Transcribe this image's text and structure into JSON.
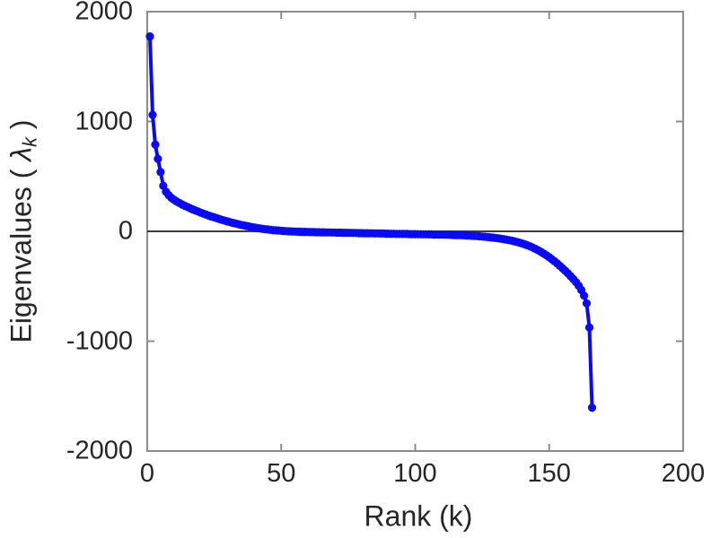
{
  "chart_data": {
    "type": "line",
    "title": "",
    "xlabel": "Rank (k)",
    "ylabel": "Eigenvalues ( λ_k )",
    "ylabel_parts": {
      "text": "Eigenvalues ( ",
      "symbol": "λ",
      "subscript": "k",
      "close": " )"
    },
    "xlim": [
      0,
      200
    ],
    "ylim": [
      -2000,
      2000
    ],
    "xticks": [
      0,
      50,
      100,
      150,
      200
    ],
    "yticks": [
      2000,
      1000,
      0,
      -1000,
      -2000
    ],
    "xtick_labels": [
      "0",
      "50",
      "100",
      "150",
      "200"
    ],
    "ytick_labels": [
      "2000",
      "1000",
      "0",
      "-1000",
      "-2000"
    ],
    "grid": false,
    "box": true,
    "tick_direction": "in",
    "zero_line": true,
    "legend": "none",
    "line_color": "#0a0af5",
    "axis_color": "#8c8c8c",
    "zero_line_color": "#3c3c3c",
    "text_color": "#262626",
    "marker": "filled-circle",
    "marker_radius": 4.6,
    "line_width": 4,
    "series": [
      {
        "name": "eigenvalues",
        "x": [
          1,
          2,
          3,
          4,
          5,
          6,
          7,
          8,
          9,
          10,
          11,
          12,
          13,
          14,
          15,
          16,
          17,
          18,
          19,
          20,
          21,
          22,
          23,
          24,
          25,
          26,
          27,
          28,
          29,
          30,
          31,
          32,
          33,
          34,
          35,
          36,
          37,
          38,
          39,
          40,
          41,
          42,
          43,
          44,
          45,
          46,
          47,
          48,
          49,
          50,
          51,
          52,
          53,
          54,
          55,
          56,
          57,
          58,
          59,
          60,
          61,
          62,
          63,
          64,
          65,
          66,
          67,
          68,
          69,
          70,
          71,
          72,
          73,
          74,
          75,
          76,
          77,
          78,
          79,
          80,
          81,
          82,
          83,
          84,
          85,
          86,
          87,
          88,
          89,
          90,
          91,
          92,
          93,
          94,
          95,
          96,
          97,
          98,
          99,
          100,
          101,
          102,
          103,
          104,
          105,
          106,
          107,
          108,
          109,
          110,
          111,
          112,
          113,
          114,
          115,
          116,
          117,
          118,
          119,
          120,
          121,
          122,
          123,
          124,
          125,
          126,
          127,
          128,
          129,
          130,
          131,
          132,
          133,
          134,
          135,
          136,
          137,
          138,
          139,
          140,
          141,
          142,
          143,
          144,
          145,
          146,
          147,
          148,
          149,
          150,
          151,
          152,
          153,
          154,
          155,
          156,
          157,
          158,
          159,
          160,
          161,
          162,
          163,
          164,
          165,
          166
        ],
        "y": [
          1775,
          1060,
          790,
          660,
          540,
          415,
          360,
          330,
          305,
          288,
          272,
          258,
          245,
          233,
          222,
          211,
          200,
          190,
          180,
          170,
          161,
          152,
          143,
          135,
          127,
          119,
          111,
          104,
          97,
          90,
          83,
          77,
          71,
          65,
          59,
          54,
          49,
          44,
          39,
          35,
          31,
          27,
          23,
          20,
          17,
          14,
          11,
          9,
          7,
          5,
          3,
          1,
          0,
          -1,
          -2,
          -3,
          -4,
          -5,
          -5,
          -6,
          -7,
          -7,
          -8,
          -8,
          -9,
          -9,
          -10,
          -10,
          -11,
          -11,
          -12,
          -12,
          -13,
          -13,
          -14,
          -14,
          -15,
          -15,
          -16,
          -16,
          -17,
          -17,
          -18,
          -18,
          -19,
          -19,
          -20,
          -20,
          -21,
          -21,
          -22,
          -22,
          -23,
          -23,
          -24,
          -24,
          -24,
          -25,
          -25,
          -25,
          -26,
          -26,
          -27,
          -27,
          -28,
          -28,
          -29,
          -29,
          -30,
          -30,
          -31,
          -31,
          -32,
          -33,
          -34,
          -34,
          -35,
          -36,
          -37,
          -38,
          -40,
          -41,
          -43,
          -45,
          -47,
          -49,
          -52,
          -54,
          -57,
          -60,
          -63,
          -67,
          -71,
          -75,
          -80,
          -85,
          -91,
          -97,
          -104,
          -111,
          -119,
          -128,
          -138,
          -149,
          -161,
          -174,
          -188,
          -203,
          -219,
          -236,
          -254,
          -273,
          -293,
          -314,
          -336,
          -359,
          -383,
          -408,
          -434,
          -462,
          -495,
          -535,
          -585,
          -655,
          -875,
          -1605
        ]
      }
    ]
  }
}
